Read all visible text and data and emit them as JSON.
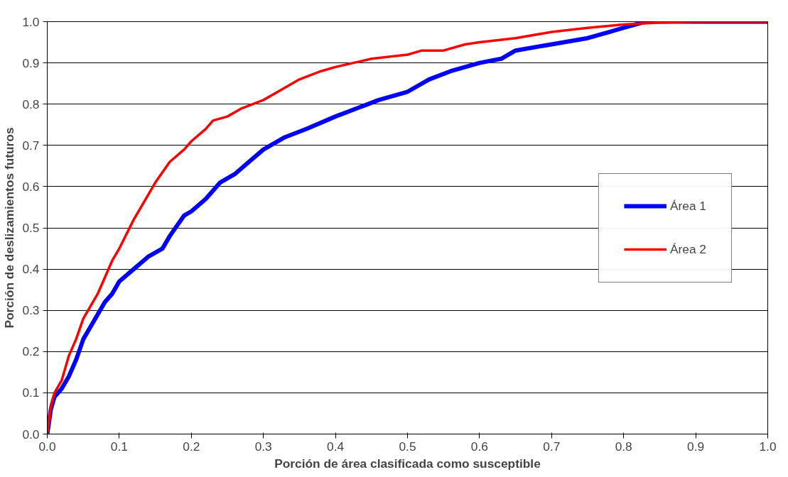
{
  "chart_data": {
    "type": "line",
    "xlabel": "Porción de área clasificada como susceptible",
    "ylabel": "Porción de deslizamientos futuros",
    "xlim": [
      0,
      1
    ],
    "ylim": [
      0,
      1
    ],
    "xticks": [
      {
        "value": 0,
        "label": "0.0"
      },
      0.1,
      0.2,
      0.3,
      0.4,
      0.5,
      0.6,
      0.7,
      0.8,
      0.9,
      {
        "value": 1,
        "label": "1.0"
      }
    ],
    "yticks": [
      {
        "value": 0,
        "label": "0.0"
      },
      0.1,
      0.2,
      0.3,
      0.4,
      0.5,
      0.6,
      0.7,
      0.8,
      0.9,
      {
        "value": 1,
        "label": "1.0"
      }
    ],
    "grid": "y",
    "legend": "right",
    "marker": "none",
    "line_style": "solid",
    "series": [
      {
        "name": "Área 1",
        "color": "#0000ff",
        "x": [
          0,
          0.005,
          0.01,
          0.02,
          0.03,
          0.04,
          0.05,
          0.06,
          0.07,
          0.08,
          0.09,
          0.1,
          0.12,
          0.14,
          0.16,
          0.17,
          0.19,
          0.2,
          0.22,
          0.24,
          0.26,
          0.28,
          0.3,
          0.33,
          0.36,
          0.4,
          0.43,
          0.46,
          0.5,
          0.53,
          0.56,
          0.6,
          0.63,
          0.65,
          0.7,
          0.75,
          0.78,
          0.8,
          0.83,
          1.0
        ],
        "values": [
          0,
          0.06,
          0.09,
          0.11,
          0.14,
          0.18,
          0.23,
          0.26,
          0.29,
          0.32,
          0.34,
          0.37,
          0.4,
          0.43,
          0.45,
          0.48,
          0.53,
          0.54,
          0.57,
          0.61,
          0.63,
          0.66,
          0.69,
          0.72,
          0.74,
          0.77,
          0.79,
          0.81,
          0.83,
          0.86,
          0.88,
          0.9,
          0.91,
          0.93,
          0.945,
          0.96,
          0.975,
          0.985,
          1.0,
          1.0
        ]
      },
      {
        "name": "Área 2",
        "color": "#ff0000",
        "x": [
          0,
          0.005,
          0.01,
          0.02,
          0.03,
          0.04,
          0.05,
          0.06,
          0.07,
          0.08,
          0.09,
          0.1,
          0.12,
          0.14,
          0.15,
          0.17,
          0.19,
          0.2,
          0.22,
          0.23,
          0.25,
          0.27,
          0.3,
          0.32,
          0.35,
          0.38,
          0.4,
          0.45,
          0.5,
          0.52,
          0.55,
          0.58,
          0.6,
          0.65,
          0.7,
          0.75,
          0.8,
          0.85,
          0.9,
          1.0
        ],
        "values": [
          0,
          0.07,
          0.1,
          0.13,
          0.19,
          0.23,
          0.28,
          0.31,
          0.34,
          0.38,
          0.42,
          0.45,
          0.52,
          0.58,
          0.61,
          0.66,
          0.69,
          0.71,
          0.74,
          0.76,
          0.77,
          0.79,
          0.81,
          0.83,
          0.86,
          0.88,
          0.89,
          0.91,
          0.92,
          0.93,
          0.93,
          0.945,
          0.95,
          0.96,
          0.975,
          0.985,
          0.993,
          0.998,
          1.0,
          1.0
        ]
      }
    ]
  }
}
